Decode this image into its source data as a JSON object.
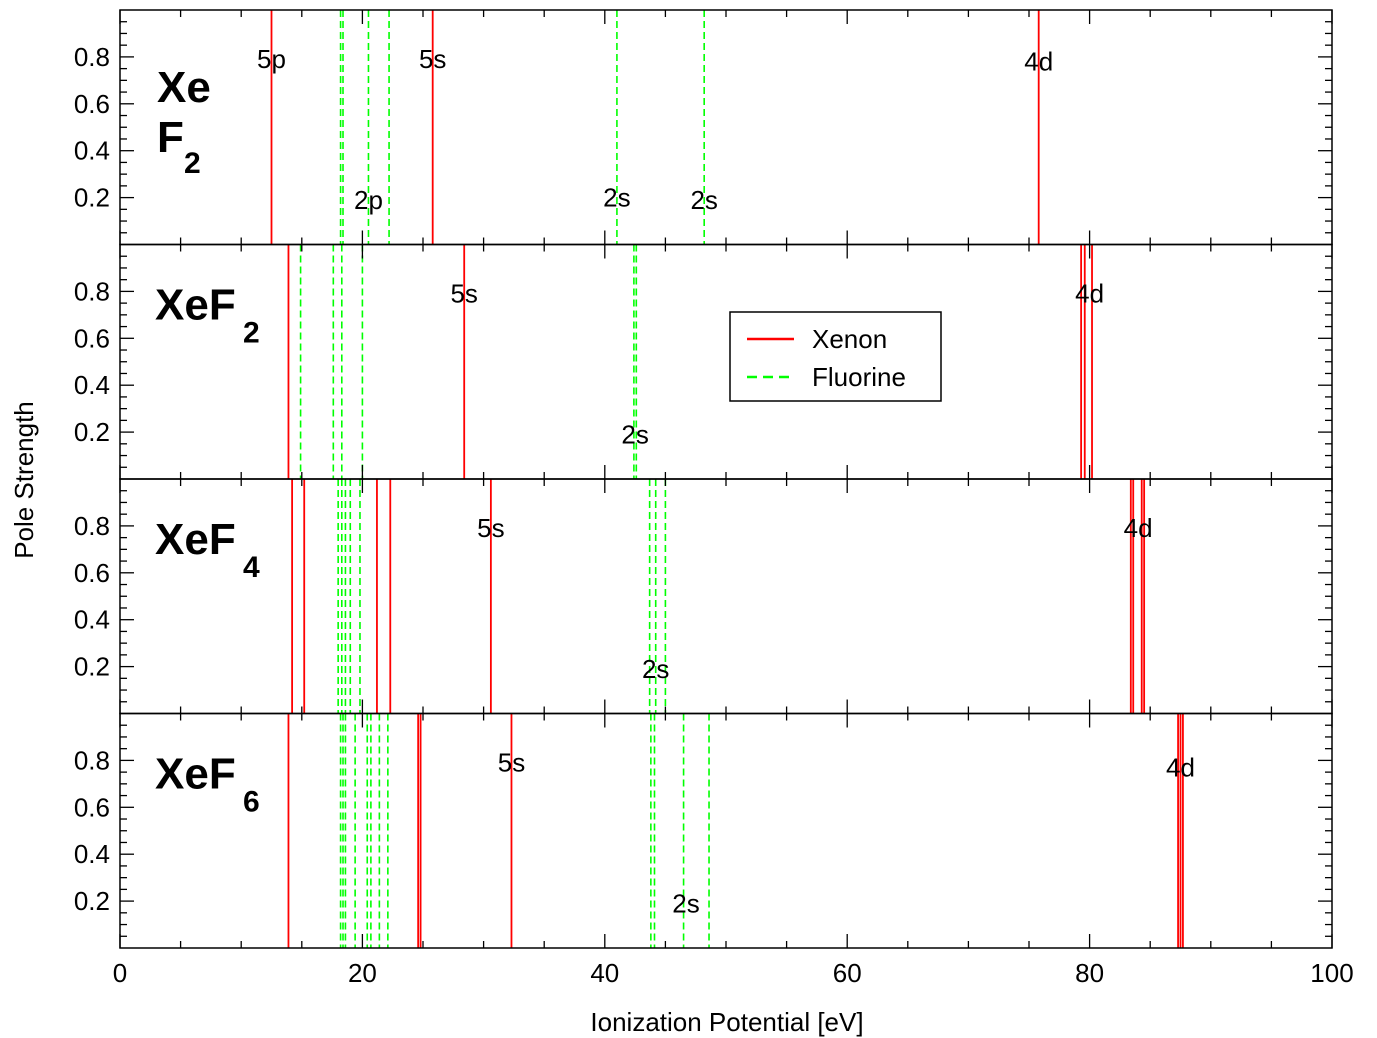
{
  "chart_data": {
    "type": "stick-spectrum",
    "xlabel": "Ionization Potential [eV]",
    "ylabel": "Pole Strength",
    "xlim": [
      0,
      100
    ],
    "ylim": [
      0,
      1
    ],
    "x_ticks": [
      "0",
      "20",
      "40",
      "60",
      "80",
      "100"
    ],
    "y_ticks": [
      "0.2",
      "0.4",
      "0.6",
      "0.8"
    ],
    "legend": {
      "placement": "middle of second panel",
      "entries": [
        {
          "label": "Xenon",
          "color": "#ff0000",
          "style": "solid"
        },
        {
          "label": "Fluorine",
          "color": "#00ff00",
          "style": "dashed"
        }
      ]
    },
    "panels": [
      {
        "title_main": "Xe",
        "title_line2": "F",
        "title_sub": "2",
        "xenon_lines": [
          12.5,
          25.8,
          75.8
        ],
        "fluorine_lines": [
          18.2,
          18.4,
          20.5,
          22.2,
          41.0,
          48.2
        ],
        "labels": [
          {
            "text": "5p",
            "x": 12.5,
            "y": 0.79
          },
          {
            "text": "5s",
            "x": 25.8,
            "y": 0.79
          },
          {
            "text": "4d",
            "x": 75.8,
            "y": 0.78
          },
          {
            "text": "2p",
            "x": 20.5,
            "y": 0.19
          },
          {
            "text": "2s",
            "x": 41.0,
            "y": 0.2
          },
          {
            "text": "2s",
            "x": 48.2,
            "y": 0.19
          }
        ]
      },
      {
        "title_main": "XeF",
        "title_sub": "2",
        "xenon_lines": [
          13.9,
          28.4,
          79.3,
          79.6,
          80.2
        ],
        "fluorine_lines": [
          14.9,
          17.6,
          18.3,
          20.0,
          42.4,
          42.6
        ],
        "labels": [
          {
            "text": "5s",
            "x": 28.4,
            "y": 0.79
          },
          {
            "text": "4d",
            "x": 80.0,
            "y": 0.79
          },
          {
            "text": "2s",
            "x": 42.5,
            "y": 0.19
          }
        ]
      },
      {
        "title_main": "XeF",
        "title_sub": "4",
        "xenon_lines": [
          14.2,
          15.2,
          21.2,
          22.3,
          30.6,
          83.4,
          83.6,
          84.3,
          84.5
        ],
        "fluorine_lines": [
          18.0,
          18.3,
          18.6,
          19.0,
          19.8,
          43.7,
          44.2,
          45.0
        ],
        "labels": [
          {
            "text": "5s",
            "x": 30.6,
            "y": 0.79
          },
          {
            "text": "4d",
            "x": 84.0,
            "y": 0.79
          },
          {
            "text": "2s",
            "x": 44.2,
            "y": 0.19
          }
        ]
      },
      {
        "title_main": "XeF",
        "title_sub": "6",
        "xenon_lines": [
          13.9,
          24.6,
          24.8,
          32.3,
          87.3,
          87.5,
          87.7
        ],
        "fluorine_lines": [
          18.2,
          18.4,
          18.6,
          19.4,
          20.4,
          20.7,
          21.4,
          22.1,
          43.8,
          44.1,
          46.5,
          48.6
        ],
        "labels": [
          {
            "text": "5s",
            "x": 32.3,
            "y": 0.79
          },
          {
            "text": "4d",
            "x": 87.5,
            "y": 0.77
          },
          {
            "text": "2s",
            "x": 46.7,
            "y": 0.19
          }
        ]
      }
    ]
  }
}
